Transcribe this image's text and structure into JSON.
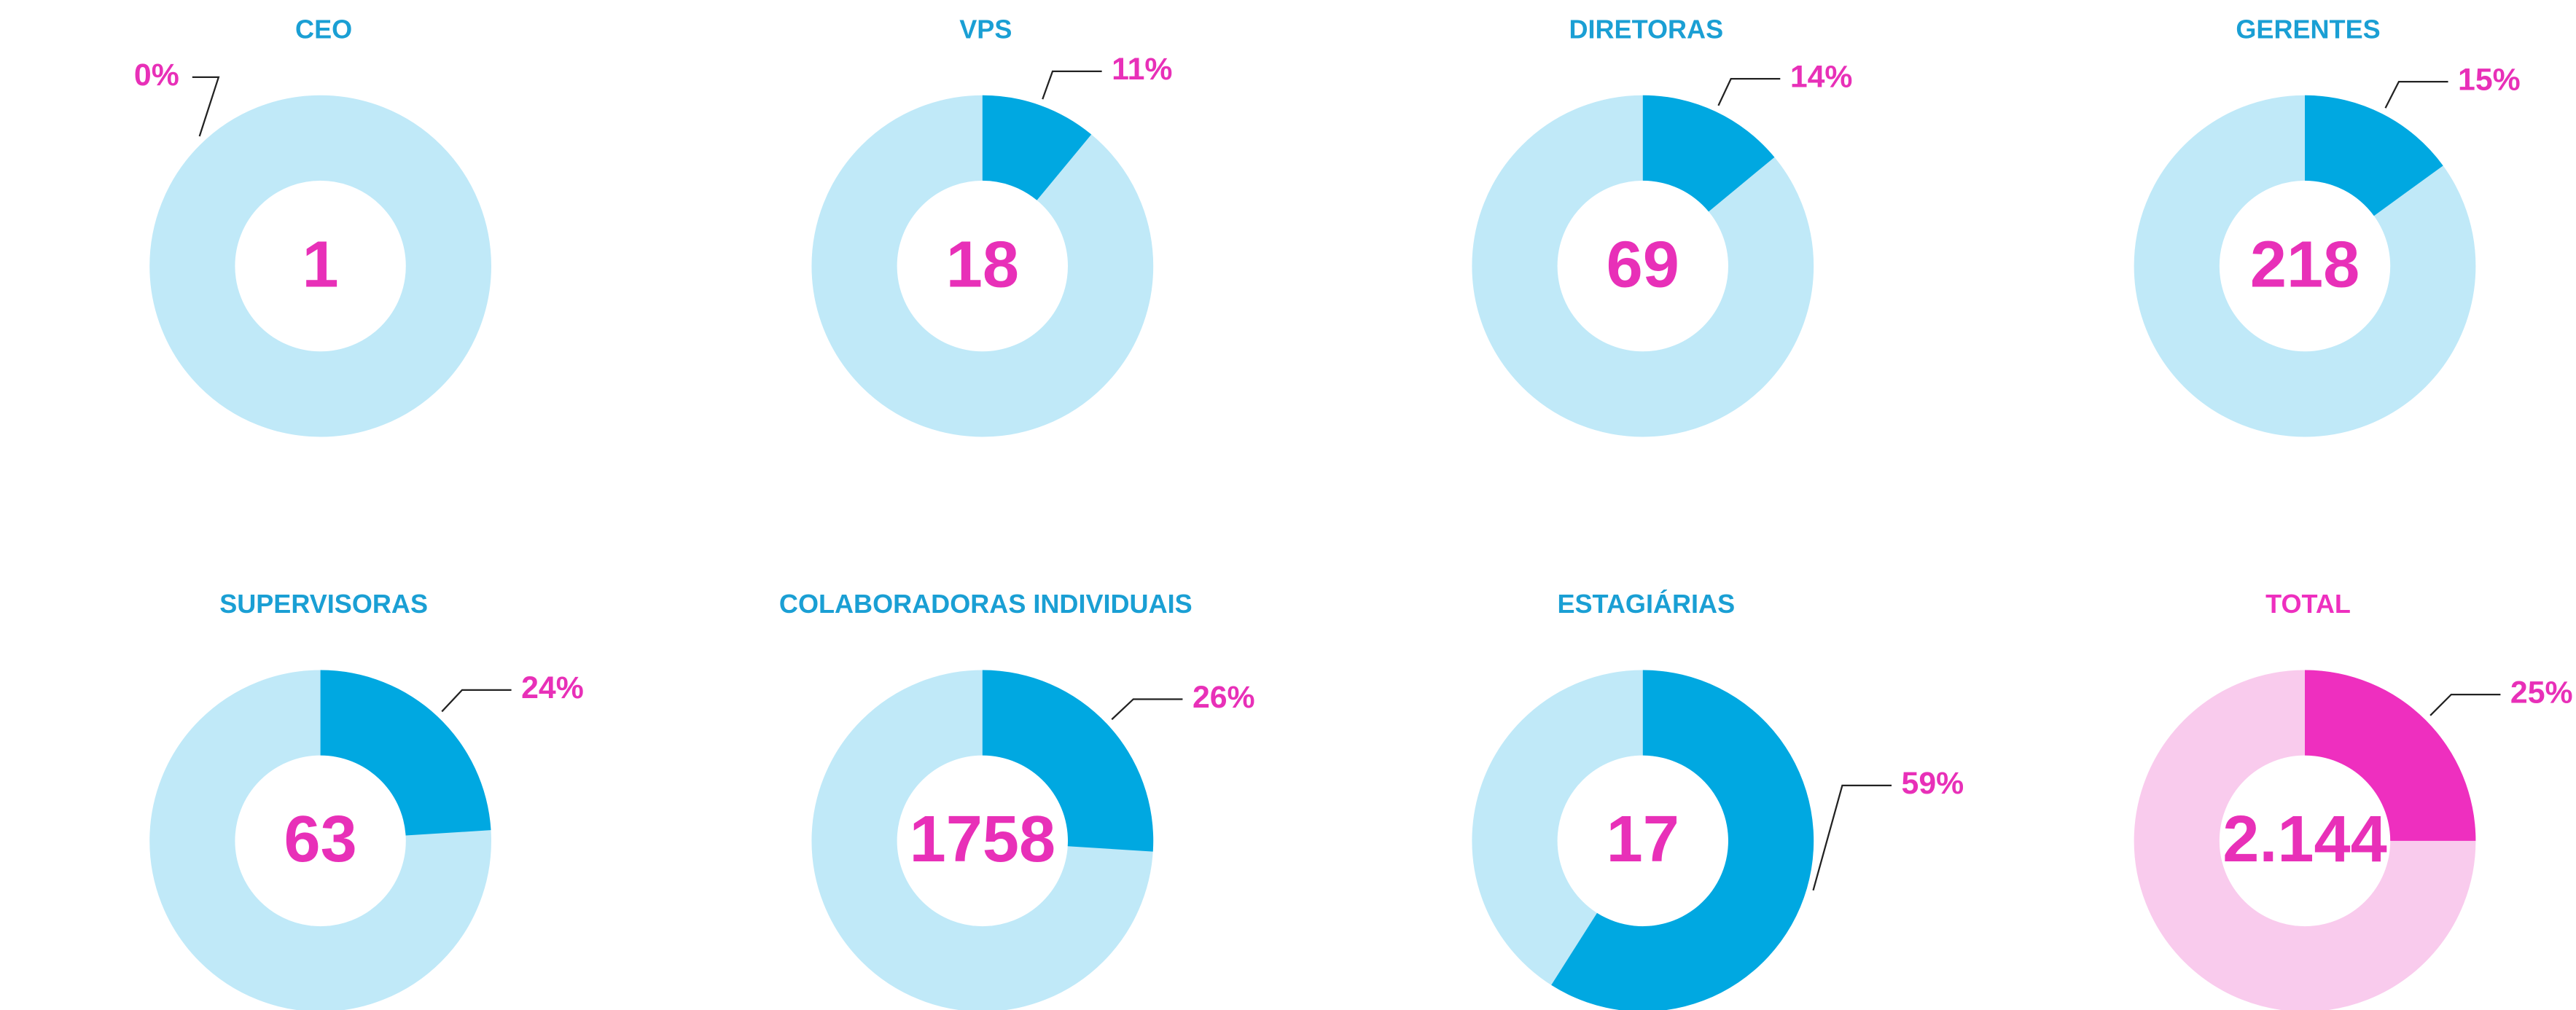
{
  "chart_data": [
    {
      "type": "donut",
      "title": "CEO",
      "count": 1,
      "values": [
        0
      ],
      "value_labels": [
        "0%"
      ],
      "color": "#00a8e1",
      "rest_color": "#c0e9f8"
    },
    {
      "type": "donut",
      "title": "VPS",
      "count": 18,
      "values": [
        11
      ],
      "value_labels": [
        "11%"
      ],
      "color": "#00a8e1",
      "rest_color": "#c0e9f8"
    },
    {
      "type": "donut",
      "title": "DIRETORAS",
      "count": 69,
      "values": [
        14
      ],
      "value_labels": [
        "14%"
      ],
      "color": "#00a8e1",
      "rest_color": "#c0e9f8"
    },
    {
      "type": "donut",
      "title": "GERENTES",
      "count": 218,
      "values": [
        15
      ],
      "value_labels": [
        "15%"
      ],
      "color": "#00a8e1",
      "rest_color": "#c0e9f8"
    },
    {
      "type": "donut",
      "title": "SUPERVISORAS",
      "count": 63,
      "values": [
        24
      ],
      "value_labels": [
        "24%"
      ],
      "color": "#00a8e1",
      "rest_color": "#c0e9f8"
    },
    {
      "type": "donut",
      "title": "COLABORADORAS INDIVIDUAIS",
      "count": 1758,
      "values": [
        26
      ],
      "value_labels": [
        "26%"
      ],
      "color": "#00a8e1",
      "rest_color": "#c0e9f8"
    },
    {
      "type": "donut",
      "title": "ESTAGIÁRIAS",
      "count": 17,
      "values": [
        59
      ],
      "value_labels": [
        "59%"
      ],
      "color": "#00a8e1",
      "rest_color": "#c0e9f8"
    },
    {
      "type": "donut",
      "title": "TOTAL",
      "count": {
        "value": 2144,
        "label": "2.144"
      },
      "values": [
        25
      ],
      "value_labels": [
        "25%"
      ],
      "color": "#ee2fbf",
      "rest_color": "#f9cbed",
      "title_color": "#ee2fbf"
    }
  ]
}
